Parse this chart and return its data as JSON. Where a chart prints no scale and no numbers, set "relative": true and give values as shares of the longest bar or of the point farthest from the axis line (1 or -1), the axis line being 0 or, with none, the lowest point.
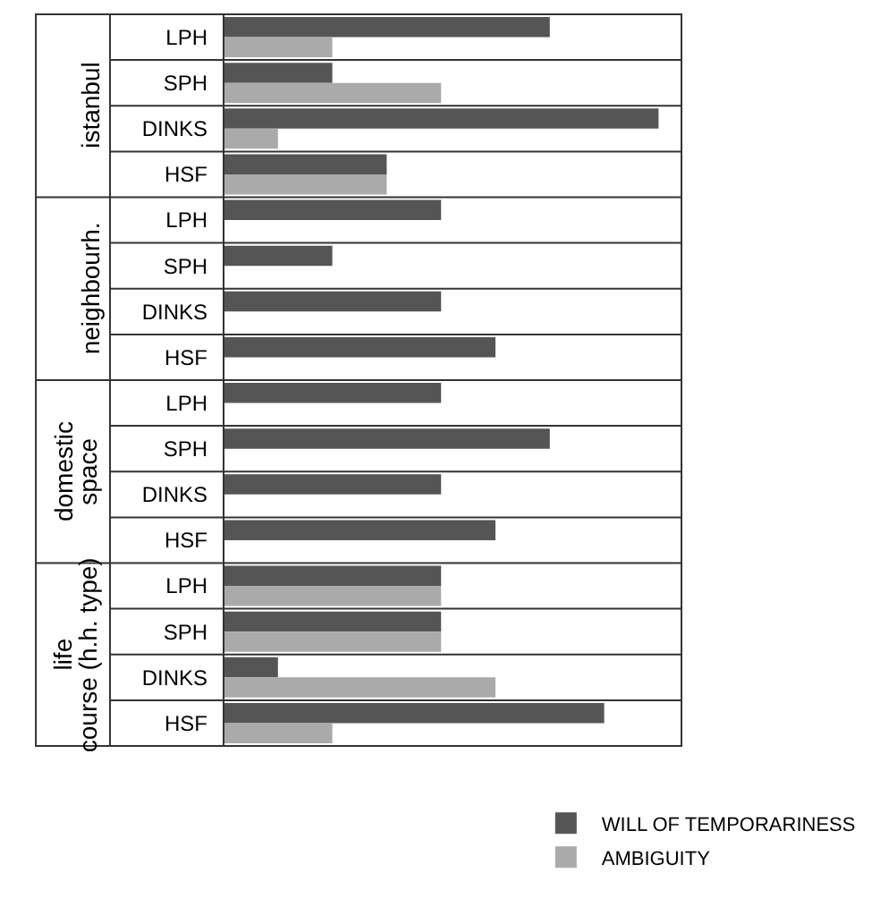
{
  "chart_data": {
    "type": "bar",
    "orientation": "horizontal",
    "relative": true,
    "categories": [
      "LPH",
      "SPH",
      "DINKS",
      "HSF",
      "LPH",
      "SPH",
      "DINKS",
      "HSF",
      "LPH",
      "SPH",
      "DINKS",
      "HSF",
      "LPH",
      "SPH",
      "DINKS",
      "HSF"
    ],
    "series": [
      {
        "name": "WILL OF TEMPORARINESS",
        "color": "#555555",
        "values": [
          0.75,
          0.25,
          1,
          0.375,
          0.5,
          0.25,
          0.5,
          0.625,
          0.5,
          0.75,
          0.5,
          0.625,
          0.5,
          0.5,
          0.125,
          0.875
        ]
      },
      {
        "name": "AMBIGUITY",
        "color": "#aaaaaa",
        "values": [
          0.25,
          0.5,
          0.125,
          0.375,
          null,
          null,
          null,
          null,
          null,
          null,
          null,
          null,
          0.5,
          0.5,
          0.625,
          0.25
        ]
      }
    ],
    "annotations": [
      "istanbul",
      "neighbourh.",
      "domestic space",
      "life course (h.h. type)"
    ],
    "legend": "bottom right"
  }
}
